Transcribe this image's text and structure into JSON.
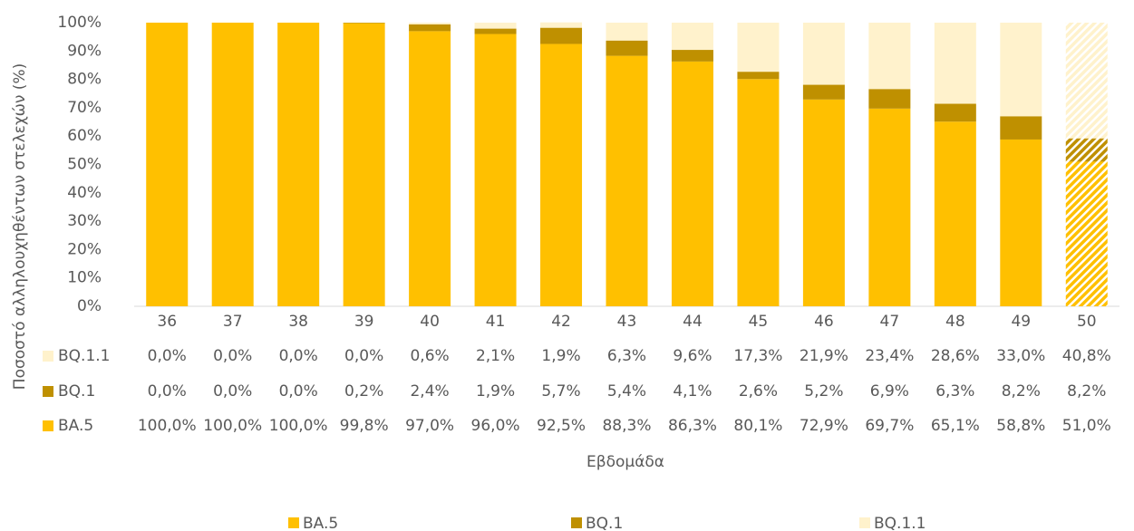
{
  "chart_data": {
    "type": "stacked_bar",
    "ylabel": "Ποσοστό αλληλουχηθέντων στελεχών (%)",
    "xlabel": "Εβδομάδα",
    "categories": [
      "36",
      "37",
      "38",
      "39",
      "40",
      "41",
      "42",
      "43",
      "44",
      "45",
      "46",
      "47",
      "48",
      "49",
      "50"
    ],
    "hatched": [
      false,
      false,
      false,
      false,
      false,
      false,
      false,
      false,
      false,
      false,
      false,
      false,
      false,
      false,
      true
    ],
    "ylim": [
      0,
      100
    ],
    "yticks": [
      {
        "value": 0,
        "label": "0%"
      },
      {
        "value": 10,
        "label": "10%"
      },
      {
        "value": 20,
        "label": "20%"
      },
      {
        "value": 30,
        "label": "30%"
      },
      {
        "value": 40,
        "label": "40%"
      },
      {
        "value": 50,
        "label": "50%"
      },
      {
        "value": 60,
        "label": "60%"
      },
      {
        "value": 70,
        "label": "70%"
      },
      {
        "value": 80,
        "label": "80%"
      },
      {
        "value": 90,
        "label": "90%"
      },
      {
        "value": 100,
        "label": "100%"
      }
    ],
    "series": [
      {
        "name": "BA.5",
        "color": "#FFC000",
        "values": [
          100,
          100,
          100,
          99.8,
          97,
          96,
          92.5,
          88.3,
          86.3,
          80.1,
          72.9,
          69.7,
          65.1,
          58.8,
          51.0
        ],
        "value_labels": [
          "100,0%",
          "100,0%",
          "100,0%",
          "99,8%",
          "97,0%",
          "96,0%",
          "92,5%",
          "88,3%",
          "86,3%",
          "80,1%",
          "72,9%",
          "69,7%",
          "65,1%",
          "58,8%",
          "51,0%"
        ]
      },
      {
        "name": "BQ.1",
        "color": "#BF9000",
        "values": [
          0,
          0,
          0,
          0.2,
          2.4,
          1.9,
          5.7,
          5.4,
          4.1,
          2.6,
          5.2,
          6.9,
          6.3,
          8.2,
          8.2
        ],
        "value_labels": [
          "0,0%",
          "0,0%",
          "0,0%",
          "0,2%",
          "2,4%",
          "1,9%",
          "5,7%",
          "5,4%",
          "4,1%",
          "2,6%",
          "5,2%",
          "6,9%",
          "6,3%",
          "8,2%",
          "8,2%"
        ]
      },
      {
        "name": "BQ.1.1",
        "color": "#FFF2CC",
        "values": [
          0,
          0,
          0,
          0,
          0.6,
          2.1,
          1.9,
          6.3,
          9.6,
          17.3,
          21.9,
          23.4,
          28.6,
          33.0,
          40.8
        ],
        "value_labels": [
          "0,0%",
          "0,0%",
          "0,0%",
          "0,0%",
          "0,6%",
          "2,1%",
          "1,9%",
          "6,3%",
          "9,6%",
          "17,3%",
          "21,9%",
          "23,4%",
          "28,6%",
          "33,0%",
          "40,8%"
        ]
      }
    ]
  }
}
